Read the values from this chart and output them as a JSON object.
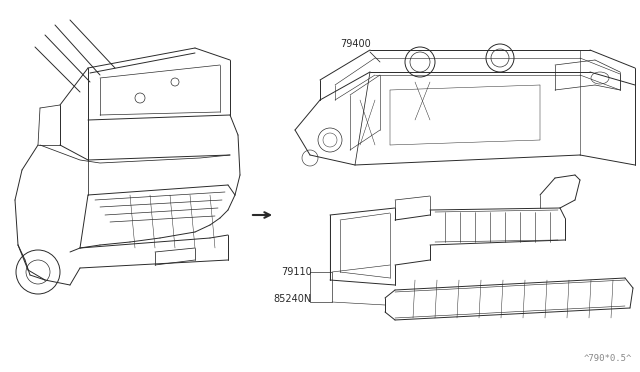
{
  "background_color": "#ffffff",
  "line_color": "#2a2a2a",
  "line_width": 0.7,
  "label_79400": "79400",
  "label_79110": "79110",
  "label_85240N": "85240N",
  "label_fontsize": 7.0,
  "watermark": "^790*0.5^",
  "watermark_fontsize": 6.5
}
